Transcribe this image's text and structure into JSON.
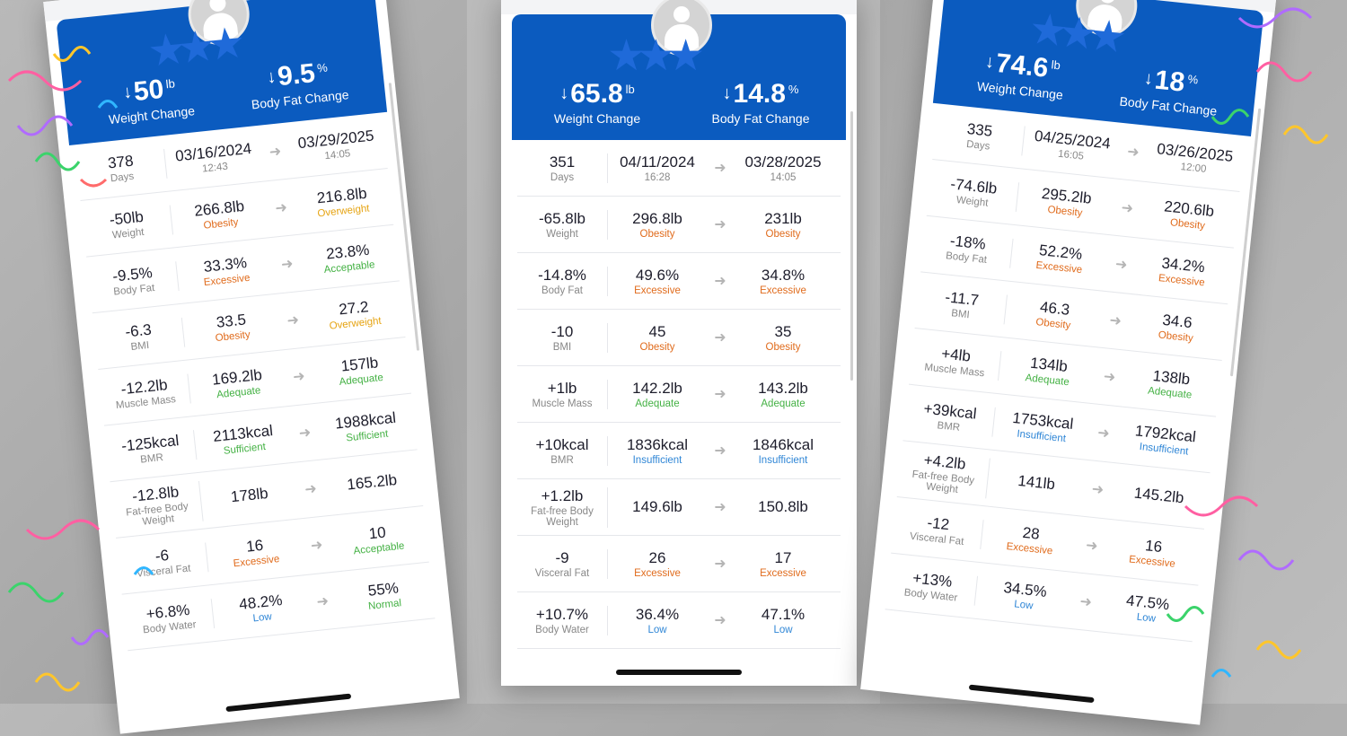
{
  "colors": {
    "hero": "#0b5bbf",
    "orange": "#e06b1c",
    "yellow": "#e6a413",
    "green": "#44b144",
    "blue": "#2f86d6"
  },
  "phones": [
    {
      "weight_change": "50",
      "weight_unit": "lb",
      "weight_caption": "Weight Change",
      "fat_change": "9.5",
      "fat_unit": "%",
      "fat_caption": "Body Fat Change",
      "days": "378",
      "days_label": "Days",
      "start_date": "03/16/2024",
      "start_time": "12:43",
      "end_date": "03/29/2025",
      "end_time": "14:05",
      "rows": [
        {
          "delta": "-50lb",
          "label": "Weight",
          "from": "266.8lb",
          "from_tag": "Obesity",
          "from_color": "orange",
          "to": "216.8lb",
          "to_tag": "Overweight",
          "to_color": "yellow"
        },
        {
          "delta": "-9.5%",
          "label": "Body Fat",
          "from": "33.3%",
          "from_tag": "Excessive",
          "from_color": "orange",
          "to": "23.8%",
          "to_tag": "Acceptable",
          "to_color": "green"
        },
        {
          "delta": "-6.3",
          "label": "BMI",
          "from": "33.5",
          "from_tag": "Obesity",
          "from_color": "orange",
          "to": "27.2",
          "to_tag": "Overweight",
          "to_color": "yellow"
        },
        {
          "delta": "-12.2lb",
          "label": "Muscle Mass",
          "from": "169.2lb",
          "from_tag": "Adequate",
          "from_color": "green",
          "to": "157lb",
          "to_tag": "Adequate",
          "to_color": "green"
        },
        {
          "delta": "-125kcal",
          "label": "BMR",
          "from": "2113kcal",
          "from_tag": "Sufficient",
          "from_color": "green",
          "to": "1988kcal",
          "to_tag": "Sufficient",
          "to_color": "green"
        },
        {
          "delta": "-12.8lb",
          "label": "Fat-free Body Weight",
          "from": "178lb",
          "from_tag": "",
          "from_color": "",
          "to": "165.2lb",
          "to_tag": "",
          "to_color": ""
        },
        {
          "delta": "-6",
          "label": "Visceral Fat",
          "from": "16",
          "from_tag": "Excessive",
          "from_color": "orange",
          "to": "10",
          "to_tag": "Acceptable",
          "to_color": "green"
        },
        {
          "delta": "+6.8%",
          "label": "Body Water",
          "from": "48.2%",
          "from_tag": "Low",
          "from_color": "blue",
          "to": "55%",
          "to_tag": "Normal",
          "to_color": "green"
        }
      ]
    },
    {
      "weight_change": "65.8",
      "weight_unit": "lb",
      "weight_caption": "Weight Change",
      "fat_change": "14.8",
      "fat_unit": "%",
      "fat_caption": "Body Fat Change",
      "days": "351",
      "days_label": "Days",
      "start_date": "04/11/2024",
      "start_time": "16:28",
      "end_date": "03/28/2025",
      "end_time": "14:05",
      "rows": [
        {
          "delta": "-65.8lb",
          "label": "Weight",
          "from": "296.8lb",
          "from_tag": "Obesity",
          "from_color": "orange",
          "to": "231lb",
          "to_tag": "Obesity",
          "to_color": "orange"
        },
        {
          "delta": "-14.8%",
          "label": "Body Fat",
          "from": "49.6%",
          "from_tag": "Excessive",
          "from_color": "orange",
          "to": "34.8%",
          "to_tag": "Excessive",
          "to_color": "orange"
        },
        {
          "delta": "-10",
          "label": "BMI",
          "from": "45",
          "from_tag": "Obesity",
          "from_color": "orange",
          "to": "35",
          "to_tag": "Obesity",
          "to_color": "orange"
        },
        {
          "delta": "+1lb",
          "label": "Muscle Mass",
          "from": "142.2lb",
          "from_tag": "Adequate",
          "from_color": "green",
          "to": "143.2lb",
          "to_tag": "Adequate",
          "to_color": "green"
        },
        {
          "delta": "+10kcal",
          "label": "BMR",
          "from": "1836kcal",
          "from_tag": "Insufficient",
          "from_color": "blue",
          "to": "1846kcal",
          "to_tag": "Insufficient",
          "to_color": "blue"
        },
        {
          "delta": "+1.2lb",
          "label": "Fat-free Body Weight",
          "from": "149.6lb",
          "from_tag": "",
          "from_color": "",
          "to": "150.8lb",
          "to_tag": "",
          "to_color": ""
        },
        {
          "delta": "-9",
          "label": "Visceral Fat",
          "from": "26",
          "from_tag": "Excessive",
          "from_color": "orange",
          "to": "17",
          "to_tag": "Excessive",
          "to_color": "orange"
        },
        {
          "delta": "+10.7%",
          "label": "Body Water",
          "from": "36.4%",
          "from_tag": "Low",
          "from_color": "blue",
          "to": "47.1%",
          "to_tag": "Low",
          "to_color": "blue"
        }
      ]
    },
    {
      "weight_change": "74.6",
      "weight_unit": "lb",
      "weight_caption": "Weight Change",
      "fat_change": "18",
      "fat_unit": "%",
      "fat_caption": "Body Fat Change",
      "days": "335",
      "days_label": "Days",
      "start_date": "04/25/2024",
      "start_time": "16:05",
      "end_date": "03/26/2025",
      "end_time": "12:00",
      "rows": [
        {
          "delta": "-74.6lb",
          "label": "Weight",
          "from": "295.2lb",
          "from_tag": "Obesity",
          "from_color": "orange",
          "to": "220.6lb",
          "to_tag": "Obesity",
          "to_color": "orange"
        },
        {
          "delta": "-18%",
          "label": "Body Fat",
          "from": "52.2%",
          "from_tag": "Excessive",
          "from_color": "orange",
          "to": "34.2%",
          "to_tag": "Excessive",
          "to_color": "orange"
        },
        {
          "delta": "-11.7",
          "label": "BMI",
          "from": "46.3",
          "from_tag": "Obesity",
          "from_color": "orange",
          "to": "34.6",
          "to_tag": "Obesity",
          "to_color": "orange"
        },
        {
          "delta": "+4lb",
          "label": "Muscle Mass",
          "from": "134lb",
          "from_tag": "Adequate",
          "from_color": "green",
          "to": "138lb",
          "to_tag": "Adequate",
          "to_color": "green"
        },
        {
          "delta": "+39kcal",
          "label": "BMR",
          "from": "1753kcal",
          "from_tag": "Insufficient",
          "from_color": "blue",
          "to": "1792kcal",
          "to_tag": "Insufficient",
          "to_color": "blue"
        },
        {
          "delta": "+4.2lb",
          "label": "Fat-free Body Weight",
          "from": "141lb",
          "from_tag": "",
          "from_color": "",
          "to": "145.2lb",
          "to_tag": "",
          "to_color": ""
        },
        {
          "delta": "-12",
          "label": "Visceral Fat",
          "from": "28",
          "from_tag": "Excessive",
          "from_color": "orange",
          "to": "16",
          "to_tag": "Excessive",
          "to_color": "orange"
        },
        {
          "delta": "+13%",
          "label": "Body Water",
          "from": "34.5%",
          "from_tag": "Low",
          "from_color": "blue",
          "to": "47.5%",
          "to_tag": "Low",
          "to_color": "blue"
        }
      ]
    }
  ]
}
